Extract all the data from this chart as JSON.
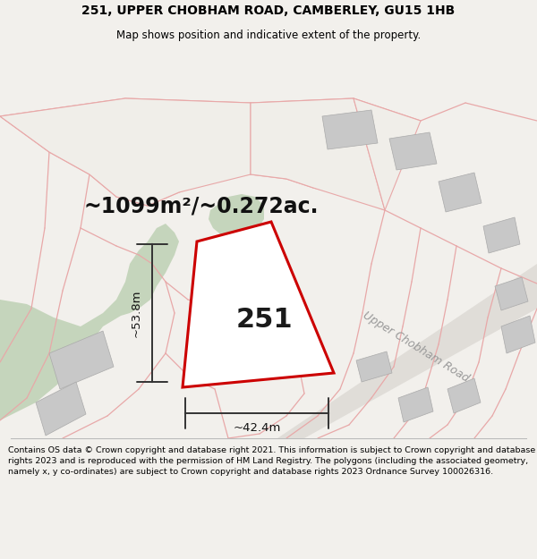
{
  "title_line1": "251, UPPER CHOBHAM ROAD, CAMBERLEY, GU15 1HB",
  "title_line2": "Map shows position and indicative extent of the property.",
  "area_text": "~1099m²/~0.272ac.",
  "house_number": "251",
  "road_label": "Upper Chobham Road",
  "dim_height": "~53.8m",
  "dim_width": "~42.4m",
  "footer_text": "Contains OS data © Crown copyright and database right 2021. This information is subject to Crown copyright and database rights 2023 and is reproduced with the permission of HM Land Registry. The polygons (including the associated geometry, namely x, y co-ordinates) are subject to Crown copyright and database rights 2023 Ordnance Survey 100026316.",
  "bg_color": "#f2f0ec",
  "map_bg": "#ece9e3",
  "plot_stroke": "#cc0000",
  "plot_fill": "#ffffff",
  "green_fill": "#c5d5bc",
  "gray_fill": "#c8c8c8",
  "road_line_color": "#e8a8a8",
  "dim_line_color": "#333333",
  "title_color": "#000000",
  "footer_color": "#000000",
  "title_fontsize": 10,
  "subtitle_fontsize": 8.5,
  "area_fontsize": 17,
  "number_fontsize": 22,
  "dim_fontsize": 9.5,
  "road_label_fontsize": 9,
  "footer_fontsize": 6.8
}
